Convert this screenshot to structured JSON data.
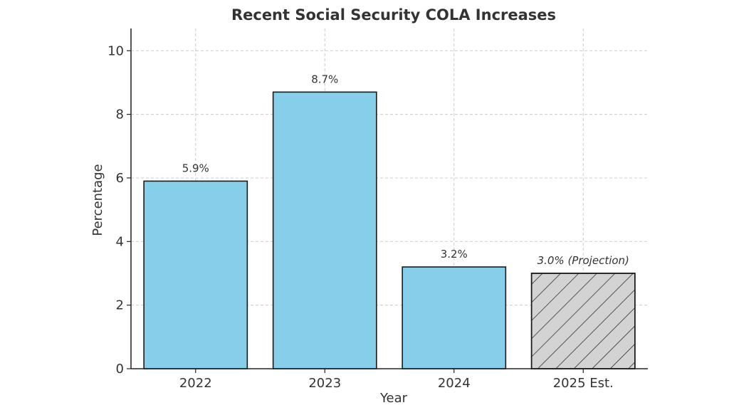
{
  "chart_data": {
    "type": "bar",
    "title": "Recent Social Security COLA Increases",
    "xlabel": "Year",
    "ylabel": "Percentage",
    "categories": [
      "2022",
      "2023",
      "2024",
      "2025 Est."
    ],
    "values": [
      5.9,
      8.7,
      3.2,
      3.0
    ],
    "data_labels": [
      "5.9%",
      "8.7%",
      "3.2%",
      "3.0% (Projection)"
    ],
    "projection_index": 3,
    "ylim": [
      0,
      10.7
    ],
    "yticks": [
      0,
      2,
      4,
      6,
      8,
      10
    ],
    "grid": true,
    "colors": {
      "bar": "#87ceeb",
      "projection_bar": "#d3d3d3",
      "hatch": "#1a1a1a",
      "edge": "#1a1a1a",
      "grid": "#cccccc"
    }
  }
}
